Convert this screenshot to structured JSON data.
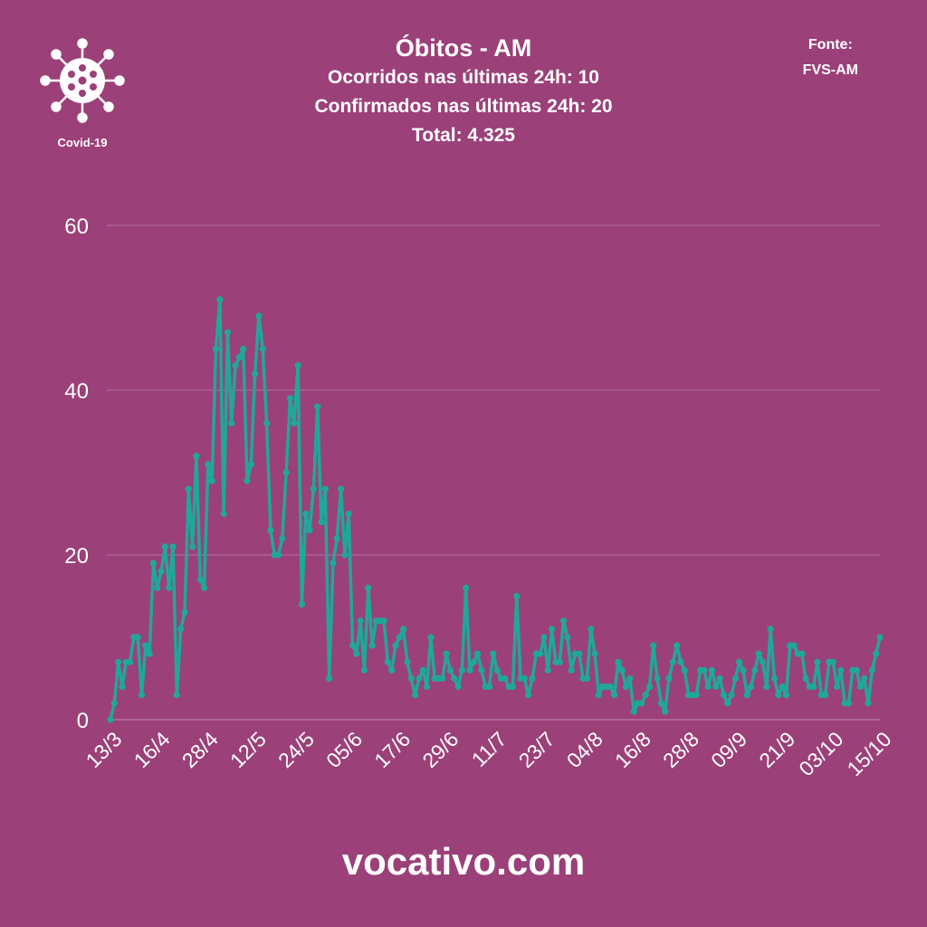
{
  "logo": {
    "label": "Covid-19",
    "icon": "virus-icon"
  },
  "header": {
    "title": "Óbitos - AM",
    "line1": "Ocorridos nas últimas 24h: 10",
    "line2": "Confirmados nas últimas 24h: 20",
    "line3": "Total: 4.325"
  },
  "source": {
    "label": "Fonte:",
    "name": "FVS-AM"
  },
  "footer": {
    "site": "vocativo.com"
  },
  "colors": {
    "background": "#9b4079",
    "line": "#1fa89a",
    "grid": "#b671a0",
    "text": "#ffffff"
  },
  "chart_data": {
    "type": "line",
    "title": "",
    "xlabel": "",
    "ylabel": "",
    "grid": true,
    "legend": "none",
    "ylim": [
      0,
      60
    ],
    "y_ticks": [
      0,
      20,
      40,
      60
    ],
    "x_tick_labels": [
      "13/3",
      "16/4",
      "28/4",
      "12/5",
      "24/5",
      "05/6",
      "17/6",
      "29/6",
      "11/7",
      "23/7",
      "04/8",
      "16/8",
      "28/8",
      "09/9",
      "21/9",
      "03/10",
      "15/10"
    ],
    "x_start": "13/3",
    "x_end": "15/10",
    "series": [
      {
        "values": [
          0,
          2,
          7,
          4,
          7,
          7,
          10,
          10,
          3,
          9,
          8,
          19,
          16,
          18,
          21,
          16,
          21,
          3,
          11,
          13,
          28,
          21,
          32,
          17,
          16,
          31,
          29,
          45,
          51,
          25,
          47,
          36,
          43,
          44,
          45,
          29,
          31,
          42,
          49,
          45,
          36,
          23,
          20,
          20,
          22,
          30,
          39,
          36,
          43,
          14,
          25,
          23,
          28,
          38,
          24,
          28,
          5,
          19,
          22,
          28,
          20,
          25,
          9,
          8,
          12,
          6,
          16,
          9,
          12,
          12,
          12,
          7,
          6,
          9,
          10,
          11,
          7,
          5,
          3,
          5,
          6,
          4,
          10,
          5,
          5,
          5,
          8,
          6,
          5,
          4,
          6,
          16,
          6,
          7,
          8,
          6,
          4,
          4,
          8,
          6,
          5,
          5,
          4,
          4,
          15,
          5,
          5,
          3,
          5,
          8,
          8,
          10,
          6,
          11,
          7,
          7,
          12,
          10,
          6,
          8,
          8,
          5,
          5,
          11,
          8,
          3,
          4,
          4,
          4,
          3,
          7,
          6,
          4,
          5,
          1,
          2,
          2,
          3,
          4,
          9,
          5,
          2,
          1,
          5,
          7,
          9,
          7,
          6,
          3,
          3,
          3,
          6,
          6,
          4,
          6,
          4,
          5,
          3,
          2,
          3,
          5,
          7,
          6,
          3,
          4,
          6,
          8,
          7,
          4,
          11,
          5,
          3,
          4,
          3,
          9,
          9,
          8,
          8,
          5,
          4,
          4,
          7,
          3,
          3,
          7,
          7,
          4,
          6,
          2,
          2,
          6,
          6,
          4,
          5,
          2,
          6,
          8,
          10
        ]
      }
    ]
  }
}
